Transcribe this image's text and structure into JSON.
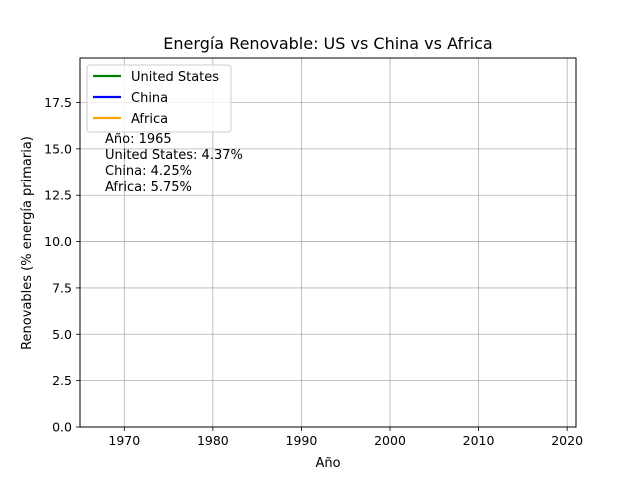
{
  "chart_data": {
    "type": "line",
    "title": "Energía Renovable: US vs China vs Africa",
    "xlabel": "Año",
    "ylabel": "Renovables (% energía primaria)",
    "xlim": [
      1965,
      2021
    ],
    "ylim": [
      0,
      19.9
    ],
    "xticks": [
      1970,
      1980,
      1990,
      2000,
      2010,
      2020
    ],
    "yticks": [
      0.0,
      2.5,
      5.0,
      7.5,
      10.0,
      12.5,
      15.0,
      17.5
    ],
    "grid": true,
    "legend_position": "top-left",
    "series": [
      {
        "name": "United States",
        "color": "#008000",
        "x": [],
        "y": []
      },
      {
        "name": "China",
        "color": "#0000ff",
        "x": [],
        "y": []
      },
      {
        "name": "Africa",
        "color": "#ffa500",
        "x": [],
        "y": []
      }
    ],
    "annotation_lines": [
      "Año: 1965",
      "United States: 4.37%",
      "China: 4.25%",
      "Africa: 5.75%"
    ]
  }
}
